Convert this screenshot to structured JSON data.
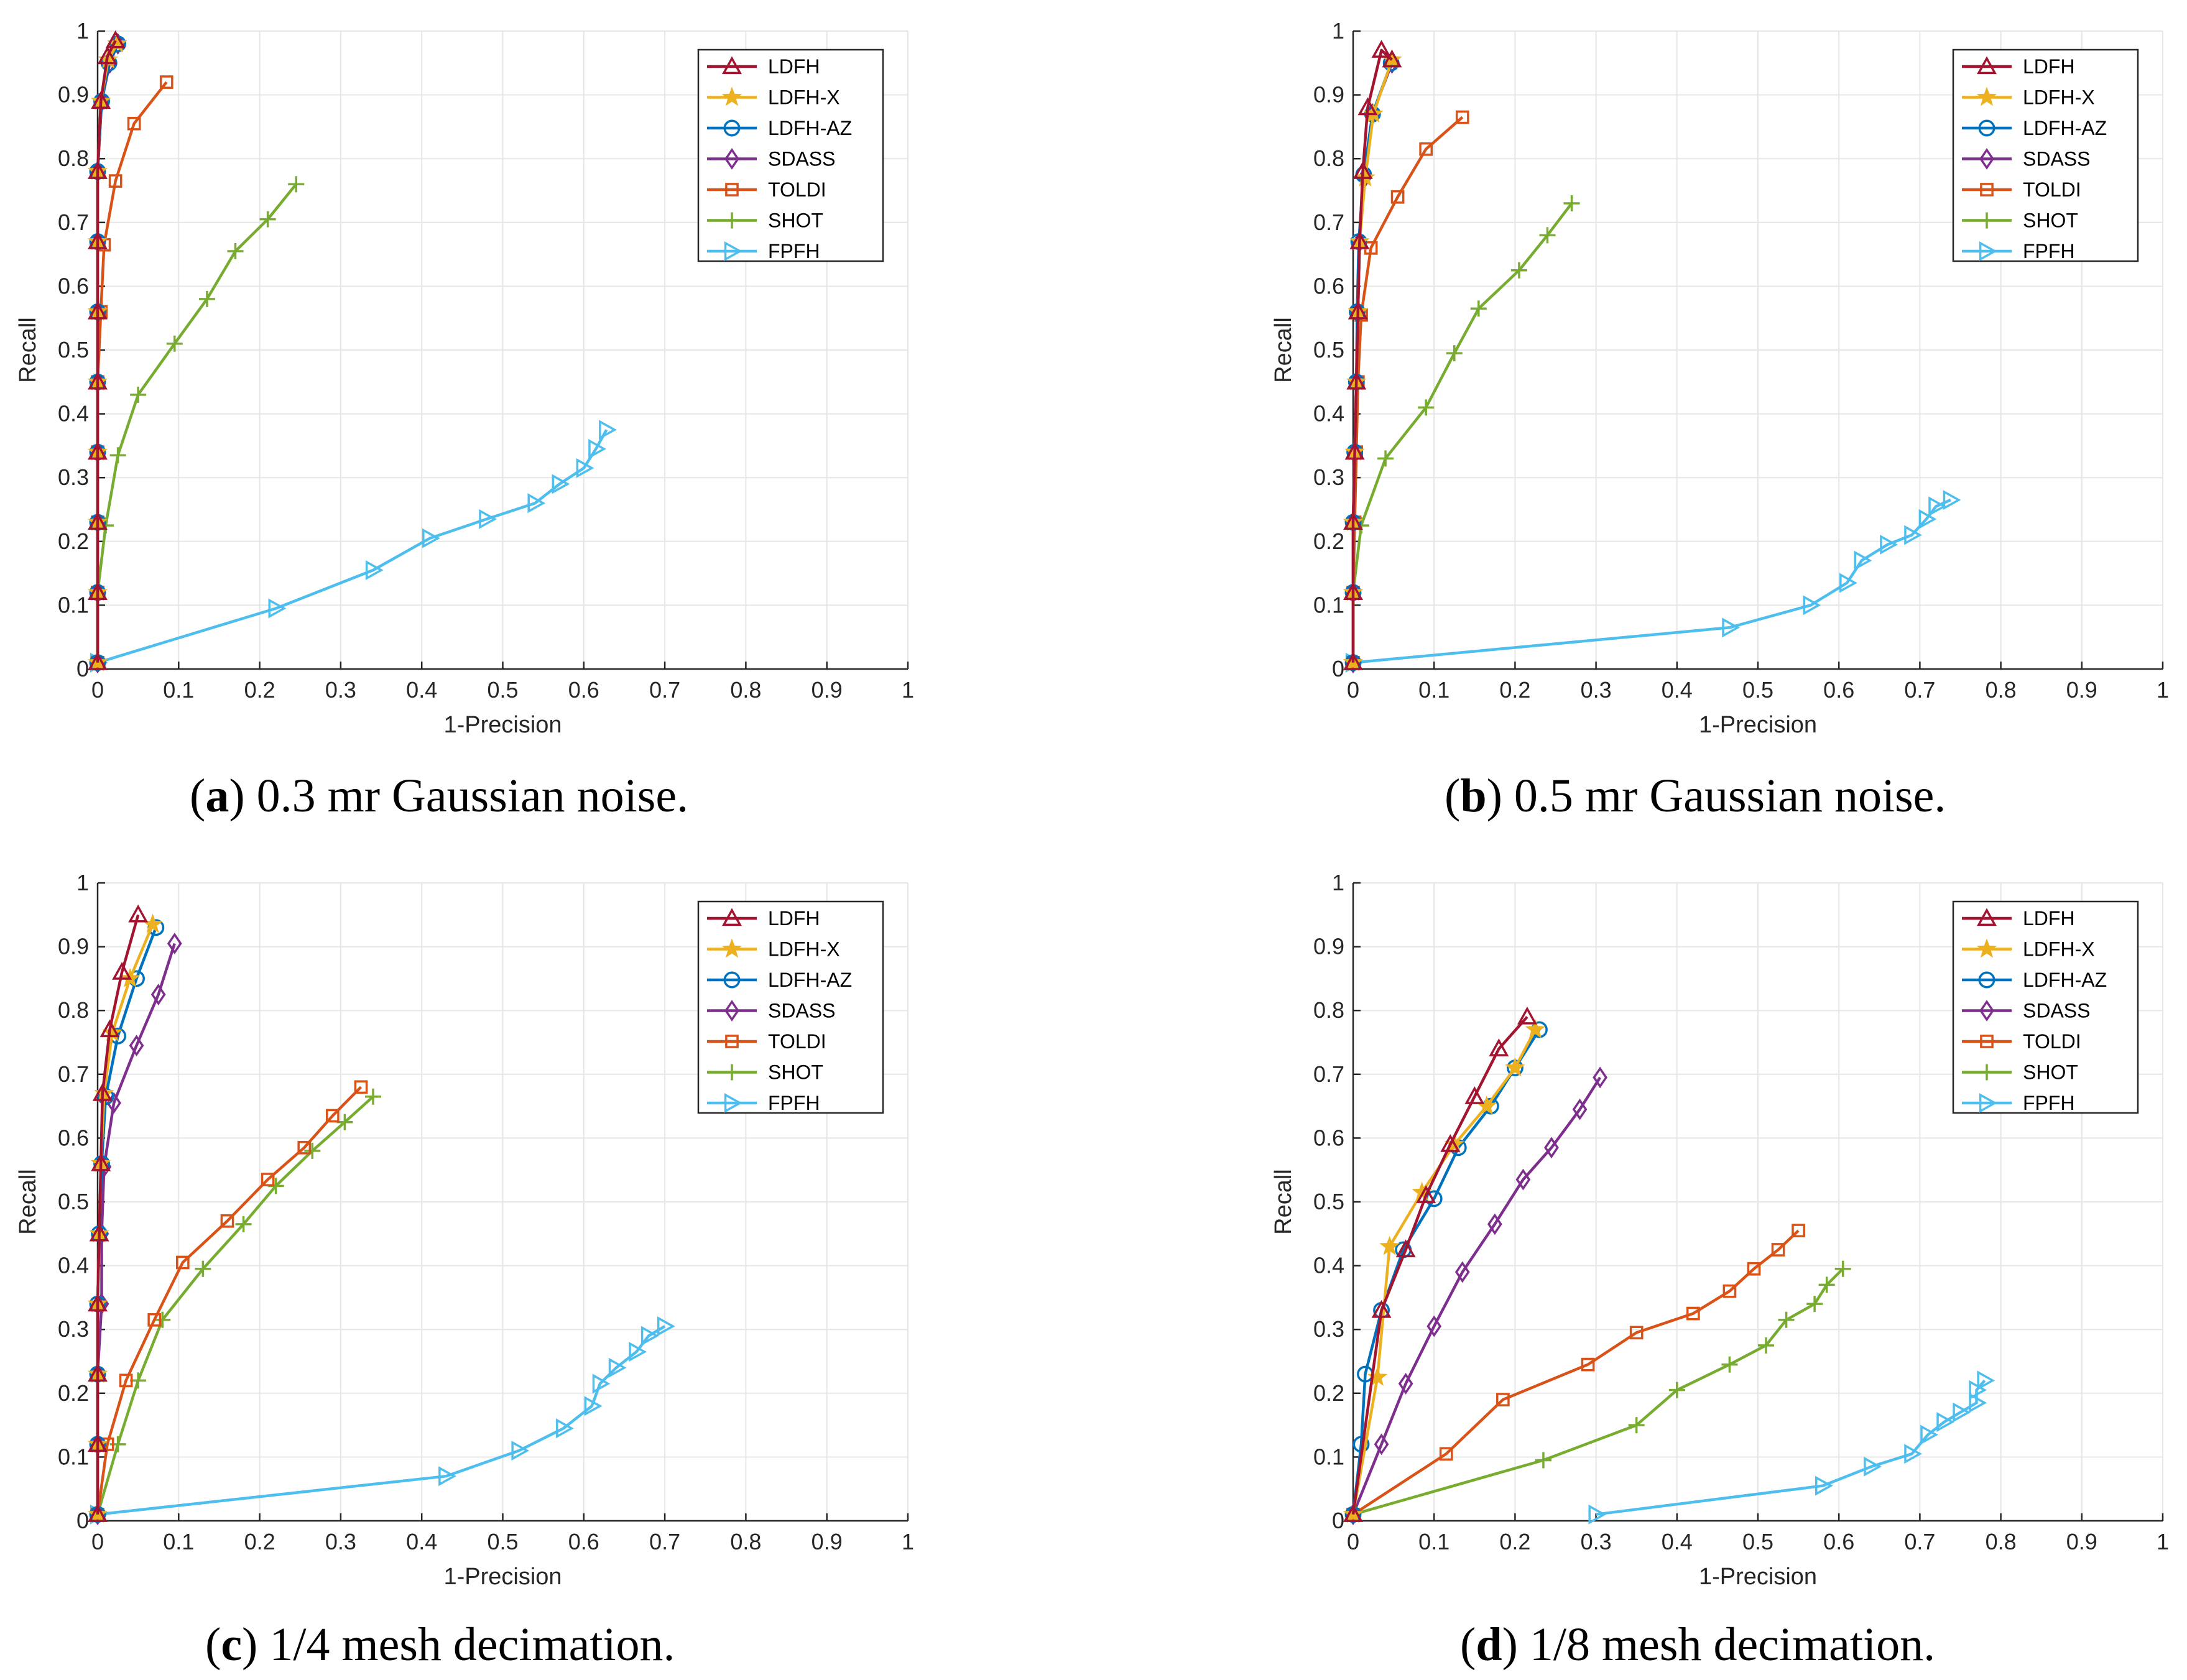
{
  "colors": {
    "LDFH": "#a2142f",
    "LDFH-X": "#edb120",
    "LDFH-AZ": "#0072bd",
    "SDASS": "#7e2f8e",
    "TOLDI": "#d95319",
    "SHOT": "#77ac30",
    "FPFH": "#4dbeee"
  },
  "markers": {
    "LDFH": "triangle-up",
    "LDFH-X": "star",
    "LDFH-AZ": "circle",
    "SDASS": "diamond",
    "TOLDI": "square",
    "SHOT": "plus",
    "FPFH": "triangle-right"
  },
  "chart_data": [
    {
      "type": "line",
      "caption": {
        "letter": "a",
        "open": "(",
        "close": ")",
        "text": " 0.3 mr Gaussian noise."
      },
      "xlabel": "1-Precision",
      "ylabel": "Recall",
      "xlim": [
        0,
        1
      ],
      "ylim": [
        0,
        1
      ],
      "xticks": [
        "0",
        "0.1",
        "0.2",
        "0.3",
        "0.4",
        "0.5",
        "0.6",
        "0.7",
        "0.8",
        "0.9",
        "1"
      ],
      "yticks": [
        "0",
        "0.1",
        "0.2",
        "0.3",
        "0.4",
        "0.5",
        "0.6",
        "0.7",
        "0.8",
        "0.9",
        "1"
      ],
      "grid": true,
      "legend": "top-right",
      "series": [
        {
          "name": "LDFH",
          "x": [
            0,
            0,
            0,
            0,
            0,
            0,
            0,
            0,
            0.004,
            0.012,
            0.022
          ],
          "y": [
            0.01,
            0.12,
            0.23,
            0.34,
            0.45,
            0.56,
            0.67,
            0.78,
            0.89,
            0.96,
            0.985
          ]
        },
        {
          "name": "LDFH-X",
          "x": [
            0,
            0,
            0,
            0,
            0,
            0,
            0,
            0,
            0.004,
            0.013,
            0.024
          ],
          "y": [
            0.01,
            0.12,
            0.23,
            0.34,
            0.45,
            0.56,
            0.67,
            0.78,
            0.89,
            0.955,
            0.98
          ]
        },
        {
          "name": "LDFH-AZ",
          "x": [
            0,
            0,
            0,
            0,
            0,
            0,
            0,
            0,
            0.005,
            0.014,
            0.025
          ],
          "y": [
            0.01,
            0.12,
            0.23,
            0.34,
            0.45,
            0.56,
            0.67,
            0.78,
            0.89,
            0.95,
            0.98
          ]
        },
        {
          "name": "SDASS",
          "x": [
            0,
            0,
            0,
            0,
            0,
            0,
            0,
            0,
            0.005,
            0.015,
            0.025
          ],
          "y": [
            0.01,
            0.12,
            0.23,
            0.34,
            0.45,
            0.56,
            0.67,
            0.78,
            0.89,
            0.95,
            0.98
          ]
        },
        {
          "name": "TOLDI",
          "x": [
            0,
            0,
            0,
            0,
            0,
            0.004,
            0.008,
            0.022,
            0.045,
            0.085
          ],
          "y": [
            0.01,
            0.12,
            0.23,
            0.34,
            0.45,
            0.56,
            0.665,
            0.765,
            0.855,
            0.92
          ]
        },
        {
          "name": "SHOT",
          "x": [
            0,
            0,
            0.01,
            0.025,
            0.05,
            0.095,
            0.135,
            0.17,
            0.21,
            0.245
          ],
          "y": [
            0.01,
            0.12,
            0.225,
            0.335,
            0.43,
            0.51,
            0.58,
            0.655,
            0.705,
            0.76
          ]
        },
        {
          "name": "FPFH",
          "x": [
            0,
            0.22,
            0.34,
            0.41,
            0.48,
            0.54,
            0.57,
            0.6,
            0.615,
            0.628
          ],
          "y": [
            0.01,
            0.095,
            0.155,
            0.205,
            0.235,
            0.26,
            0.29,
            0.315,
            0.345,
            0.375
          ]
        }
      ]
    },
    {
      "type": "line",
      "caption": {
        "letter": "b",
        "open": "(",
        "close": ")",
        "text": " 0.5 mr Gaussian noise."
      },
      "xlabel": "1-Precision",
      "ylabel": "Recall",
      "xlim": [
        0,
        1
      ],
      "ylim": [
        0,
        1
      ],
      "xticks": [
        "0",
        "0.1",
        "0.2",
        "0.3",
        "0.4",
        "0.5",
        "0.6",
        "0.7",
        "0.8",
        "0.9",
        "1"
      ],
      "yticks": [
        "0",
        "0.1",
        "0.2",
        "0.3",
        "0.4",
        "0.5",
        "0.6",
        "0.7",
        "0.8",
        "0.9",
        "1"
      ],
      "grid": true,
      "legend": "top-right",
      "series": [
        {
          "name": "LDFH",
          "x": [
            0,
            0,
            0,
            0.002,
            0.004,
            0.006,
            0.008,
            0.012,
            0.018,
            0.035,
            0.048
          ],
          "y": [
            0.01,
            0.12,
            0.23,
            0.34,
            0.45,
            0.56,
            0.67,
            0.78,
            0.88,
            0.97,
            0.955
          ]
        },
        {
          "name": "LDFH-X",
          "x": [
            0,
            0,
            0,
            0.002,
            0.004,
            0.006,
            0.008,
            0.015,
            0.025,
            0.048
          ],
          "y": [
            0.01,
            0.12,
            0.23,
            0.34,
            0.45,
            0.56,
            0.67,
            0.77,
            0.87,
            0.955
          ]
        },
        {
          "name": "LDFH-AZ",
          "x": [
            0,
            0,
            0,
            0.002,
            0.004,
            0.005,
            0.007,
            0.013,
            0.024,
            0.047
          ],
          "y": [
            0.01,
            0.12,
            0.23,
            0.34,
            0.45,
            0.56,
            0.67,
            0.775,
            0.87,
            0.95
          ]
        },
        {
          "name": "SDASS",
          "x": [
            0,
            0,
            0,
            0.002,
            0.004,
            0.006,
            0.008,
            0.014,
            0.024,
            0.048
          ],
          "y": [
            0.01,
            0.12,
            0.23,
            0.34,
            0.45,
            0.56,
            0.67,
            0.77,
            0.87,
            0.95
          ]
        },
        {
          "name": "TOLDI",
          "x": [
            0,
            0,
            0.002,
            0.004,
            0.006,
            0.01,
            0.022,
            0.055,
            0.09,
            0.135
          ],
          "y": [
            0.01,
            0.12,
            0.23,
            0.34,
            0.45,
            0.555,
            0.66,
            0.74,
            0.815,
            0.865
          ]
        },
        {
          "name": "SHOT",
          "x": [
            0,
            0,
            0.01,
            0.04,
            0.09,
            0.125,
            0.155,
            0.205,
            0.24,
            0.27
          ],
          "y": [
            0.01,
            0.12,
            0.225,
            0.33,
            0.41,
            0.495,
            0.565,
            0.625,
            0.68,
            0.73
          ]
        },
        {
          "name": "FPFH",
          "x": [
            0,
            0.465,
            0.565,
            0.61,
            0.628,
            0.66,
            0.69,
            0.708,
            0.72,
            0.738
          ],
          "y": [
            0.01,
            0.065,
            0.1,
            0.135,
            0.17,
            0.195,
            0.21,
            0.235,
            0.255,
            0.265
          ]
        }
      ]
    },
    {
      "type": "line",
      "caption": {
        "letter": "c",
        "open": "(",
        "close": ")",
        "text": " 1/4 mesh decimation."
      },
      "xlabel": "1-Precision",
      "ylabel": "Recall",
      "xlim": [
        0,
        1
      ],
      "ylim": [
        0,
        1
      ],
      "xticks": [
        "0",
        "0.1",
        "0.2",
        "0.3",
        "0.4",
        "0.5",
        "0.6",
        "0.7",
        "0.8",
        "0.9",
        "1"
      ],
      "yticks": [
        "0",
        "0.1",
        "0.2",
        "0.3",
        "0.4",
        "0.5",
        "0.6",
        "0.7",
        "0.8",
        "0.9",
        "1"
      ],
      "grid": true,
      "legend": "top-right",
      "series": [
        {
          "name": "LDFH",
          "x": [
            0,
            0,
            0,
            0,
            0.002,
            0.004,
            0.006,
            0.015,
            0.03,
            0.05
          ],
          "y": [
            0.01,
            0.12,
            0.23,
            0.34,
            0.45,
            0.56,
            0.67,
            0.77,
            0.86,
            0.95
          ]
        },
        {
          "name": "LDFH-X",
          "x": [
            0,
            0,
            0,
            0,
            0.002,
            0.004,
            0.008,
            0.018,
            0.04,
            0.068
          ],
          "y": [
            0.01,
            0.12,
            0.23,
            0.34,
            0.45,
            0.56,
            0.67,
            0.765,
            0.85,
            0.935
          ]
        },
        {
          "name": "LDFH-AZ",
          "x": [
            0,
            0,
            0,
            0,
            0.002,
            0.005,
            0.01,
            0.025,
            0.048,
            0.072
          ],
          "y": [
            0.01,
            0.12,
            0.23,
            0.34,
            0.45,
            0.56,
            0.665,
            0.76,
            0.85,
            0.93
          ]
        },
        {
          "name": "SDASS",
          "x": [
            0,
            0,
            0,
            0.005,
            0.005,
            0.008,
            0.02,
            0.048,
            0.075,
            0.095
          ],
          "y": [
            0.01,
            0.12,
            0.23,
            0.34,
            0.45,
            0.555,
            0.655,
            0.745,
            0.825,
            0.905
          ]
        },
        {
          "name": "TOLDI",
          "x": [
            0,
            0.012,
            0.035,
            0.07,
            0.105,
            0.16,
            0.21,
            0.255,
            0.29,
            0.325
          ],
          "y": [
            0.01,
            0.12,
            0.22,
            0.315,
            0.405,
            0.47,
            0.535,
            0.585,
            0.635,
            0.68
          ]
        },
        {
          "name": "SHOT",
          "x": [
            0,
            0.025,
            0.05,
            0.08,
            0.13,
            0.18,
            0.22,
            0.265,
            0.305,
            0.34
          ],
          "y": [
            0.01,
            0.12,
            0.22,
            0.315,
            0.395,
            0.465,
            0.525,
            0.58,
            0.625,
            0.665
          ]
        },
        {
          "name": "FPFH",
          "x": [
            0,
            0.43,
            0.52,
            0.575,
            0.61,
            0.62,
            0.64,
            0.665,
            0.68,
            0.7
          ],
          "y": [
            0.01,
            0.07,
            0.11,
            0.145,
            0.18,
            0.215,
            0.24,
            0.265,
            0.29,
            0.305
          ]
        }
      ]
    },
    {
      "type": "line",
      "caption": {
        "letter": "d",
        "open": "(",
        "close": ")",
        "text": " 1/8 mesh decimation."
      },
      "xlabel": "1-Precision",
      "ylabel": "Recall",
      "xlim": [
        0,
        1
      ],
      "ylim": [
        0,
        1
      ],
      "xticks": [
        "0",
        "0.1",
        "0.2",
        "0.3",
        "0.4",
        "0.5",
        "0.6",
        "0.7",
        "0.8",
        "0.9",
        "1"
      ],
      "yticks": [
        "0",
        "0.1",
        "0.2",
        "0.3",
        "0.4",
        "0.5",
        "0.6",
        "0.7",
        "0.8",
        "0.9",
        "1"
      ],
      "grid": true,
      "legend": "top-right",
      "series": [
        {
          "name": "LDFH",
          "x": [
            0,
            0.035,
            0.065,
            0.09,
            0.12,
            0.15,
            0.18,
            0.215
          ],
          "y": [
            0.01,
            0.33,
            0.425,
            0.51,
            0.59,
            0.665,
            0.74,
            0.79
          ]
        },
        {
          "name": "LDFH-X",
          "x": [
            0,
            0.03,
            0.045,
            0.085,
            0.125,
            0.165,
            0.2,
            0.225
          ],
          "y": [
            0.01,
            0.225,
            0.43,
            0.515,
            0.59,
            0.65,
            0.71,
            0.77
          ]
        },
        {
          "name": "LDFH-AZ",
          "x": [
            0,
            0.01,
            0.015,
            0.035,
            0.062,
            0.1,
            0.13,
            0.17,
            0.2,
            0.23
          ],
          "y": [
            0.01,
            0.12,
            0.23,
            0.33,
            0.425,
            0.505,
            0.585,
            0.65,
            0.71,
            0.77
          ]
        },
        {
          "name": "SDASS",
          "x": [
            0,
            0.035,
            0.065,
            0.1,
            0.135,
            0.175,
            0.21,
            0.245,
            0.28,
            0.305
          ],
          "y": [
            0.01,
            0.12,
            0.215,
            0.305,
            0.39,
            0.465,
            0.535,
            0.585,
            0.645,
            0.695
          ]
        },
        {
          "name": "TOLDI",
          "x": [
            0,
            0.115,
            0.185,
            0.29,
            0.35,
            0.42,
            0.465,
            0.495,
            0.525,
            0.55
          ],
          "y": [
            0.01,
            0.105,
            0.19,
            0.245,
            0.295,
            0.325,
            0.36,
            0.395,
            0.425,
            0.455
          ]
        },
        {
          "name": "SHOT",
          "x": [
            0,
            0.235,
            0.35,
            0.4,
            0.465,
            0.51,
            0.535,
            0.57,
            0.585,
            0.605
          ],
          "y": [
            0.01,
            0.095,
            0.15,
            0.205,
            0.245,
            0.275,
            0.315,
            0.34,
            0.37,
            0.395
          ]
        },
        {
          "name": "FPFH",
          "x": [
            0.3,
            0.58,
            0.64,
            0.69,
            0.71,
            0.73,
            0.75,
            0.77,
            0.77,
            0.78
          ],
          "y": [
            0.01,
            0.055,
            0.085,
            0.105,
            0.135,
            0.155,
            0.17,
            0.185,
            0.205,
            0.22
          ]
        }
      ]
    }
  ]
}
